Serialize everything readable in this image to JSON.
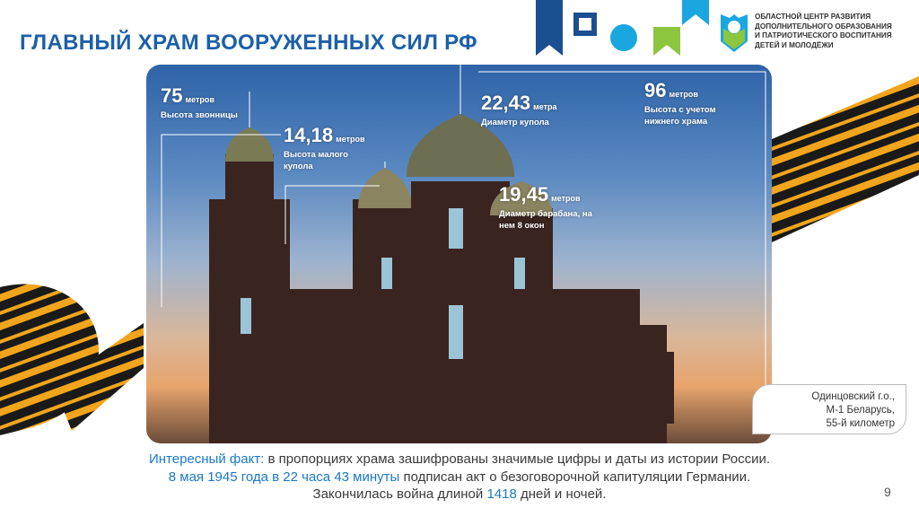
{
  "title": "ГЛАВНЫЙ ХРАМ ВООРУЖЕННЫХ СИЛ РФ",
  "logo": {
    "text": [
      "ОБЛАСТНОЙ ЦЕНТР РАЗВИТИЯ",
      "ДОПОЛНИТЕЛЬНОГО ОБРАЗОВАНИЯ",
      "И ПАТРИОТИЧЕСКОГО ВОСПИТАНИЯ",
      "ДЕТЕЙ И МОЛОДЁЖИ"
    ]
  },
  "colors": {
    "title": "#1c5fa8",
    "highlight": "#1b78c9",
    "navy": "#1b4f8f",
    "cyan": "#1aa7e0",
    "green": "#8cc63f"
  },
  "labels": [
    {
      "number": "75",
      "unit": "метров",
      "desc": "Высота звонницы"
    },
    {
      "number": "14,18",
      "unit": "метров",
      "desc": "Высота малого купола"
    },
    {
      "number": "22,43",
      "unit": "метра",
      "desc": "Диаметр купола"
    },
    {
      "number": "96",
      "unit": "метров",
      "desc": "Высота с учетом нижнего храма"
    },
    {
      "number": "19,45",
      "unit": "метров",
      "desc": "Диаметр барабана, на нем 8 окон"
    }
  ],
  "location": [
    "Одинцовский г.о.,",
    "М-1 Беларусь,",
    "55-й километр"
  ],
  "fact": {
    "line1_label": "Интересный факт:",
    "line1_text": " в пропорциях храма зашифрованы значимые цифры и даты из истории России.",
    "line2_hl": "8 мая 1945 года в 22 часа 43 минуты",
    "line2_text": " подписан акт о безоговорочной капитуляции Германии.",
    "line3_a": "Закончилась война длиной ",
    "line3_hl": "1418",
    "line3_b": " дней и ночей."
  },
  "page_number": "9"
}
